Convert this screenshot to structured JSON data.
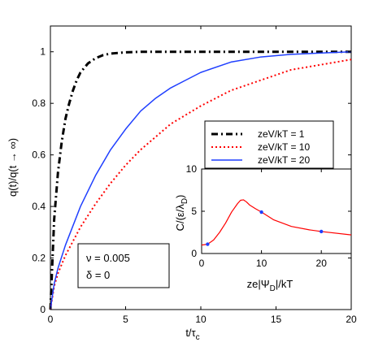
{
  "chart_data": [
    {
      "type": "line",
      "xlabel": "t/τ",
      "xlabel_sub": "c",
      "ylabel": "q(t)/q(t → ∞)",
      "xlim": [
        0,
        20
      ],
      "ylim": [
        0,
        1.1
      ],
      "xticks": [
        0,
        5,
        10,
        15,
        20
      ],
      "xtick_labels": [
        "0",
        "5",
        "10",
        "15",
        "20"
      ],
      "yticks": [
        0,
        0.2,
        0.4,
        0.6,
        0.8,
        1
      ],
      "ytick_labels": [
        "0",
        "0.2",
        "0.4",
        "0.6",
        "0.8",
        "1"
      ],
      "grid": false,
      "legend_position": "right",
      "series": [
        {
          "name": "zeV/kT = 1",
          "color": "#000000",
          "dash": "dashdot",
          "x": [
            0,
            0.25,
            0.5,
            0.75,
            1,
            1.25,
            1.5,
            1.75,
            2,
            2.5,
            3,
            3.5,
            4,
            5,
            6,
            8,
            10,
            15,
            20
          ],
          "y": [
            0,
            0.35,
            0.53,
            0.65,
            0.74,
            0.8,
            0.85,
            0.89,
            0.92,
            0.955,
            0.975,
            0.987,
            0.993,
            0.998,
            1.0,
            1.0,
            1.0,
            1.0,
            1.0
          ]
        },
        {
          "name": "zeV/kT = 10",
          "color": "#ff0000",
          "dash": "dotted",
          "x": [
            0,
            0.25,
            0.5,
            1,
            2,
            3,
            4,
            5,
            6,
            7,
            8,
            10,
            12,
            14,
            16,
            18,
            20
          ],
          "y": [
            0,
            0.09,
            0.14,
            0.21,
            0.32,
            0.41,
            0.49,
            0.56,
            0.62,
            0.67,
            0.72,
            0.79,
            0.85,
            0.89,
            0.93,
            0.95,
            0.97
          ]
        },
        {
          "name": "zeV/kT = 20",
          "color": "#1f3fff",
          "dash": "solid",
          "x": [
            0,
            0.25,
            0.5,
            1,
            2,
            3,
            4,
            5,
            6,
            7,
            8,
            9,
            10,
            12,
            14,
            16,
            18,
            20
          ],
          "y": [
            0,
            0.1,
            0.16,
            0.25,
            0.4,
            0.52,
            0.62,
            0.7,
            0.77,
            0.82,
            0.86,
            0.89,
            0.92,
            0.96,
            0.98,
            0.99,
            0.995,
            1.0
          ]
        }
      ],
      "annotation": {
        "lines": [
          "ν = 0.005",
          "δ = 0"
        ]
      }
    },
    {
      "type": "line",
      "xlabel": "ze|Ψ",
      "xlabel_sub": "D",
      "xlabel_suffix": "|/kT",
      "ylabel": "C/(ε/λ",
      "ylabel_sub": "D",
      "ylabel_suffix": ")",
      "xlim": [
        0,
        25
      ],
      "ylim": [
        0,
        10
      ],
      "xticks": [
        0,
        10,
        20
      ],
      "xtick_labels": [
        "0",
        "10",
        "20"
      ],
      "yticks": [
        0,
        5,
        10
      ],
      "ytick_labels": [
        "0",
        "5",
        "10"
      ],
      "grid": false,
      "series": [
        {
          "name": "",
          "color": "#ff0000",
          "x": [
            0,
            1,
            2,
            3,
            4,
            5,
            6,
            6.5,
            7,
            7.5,
            8,
            9,
            10,
            12,
            15,
            18,
            20,
            25
          ],
          "y": [
            1.0,
            1.1,
            1.6,
            2.5,
            3.6,
            4.9,
            5.9,
            6.3,
            6.35,
            6.1,
            5.75,
            5.3,
            4.9,
            4.0,
            3.2,
            2.8,
            2.6,
            2.2
          ]
        }
      ],
      "markers": {
        "color": "#1f3fff",
        "x": [
          1,
          10,
          20
        ],
        "y": [
          1.1,
          4.9,
          2.6
        ]
      }
    }
  ]
}
